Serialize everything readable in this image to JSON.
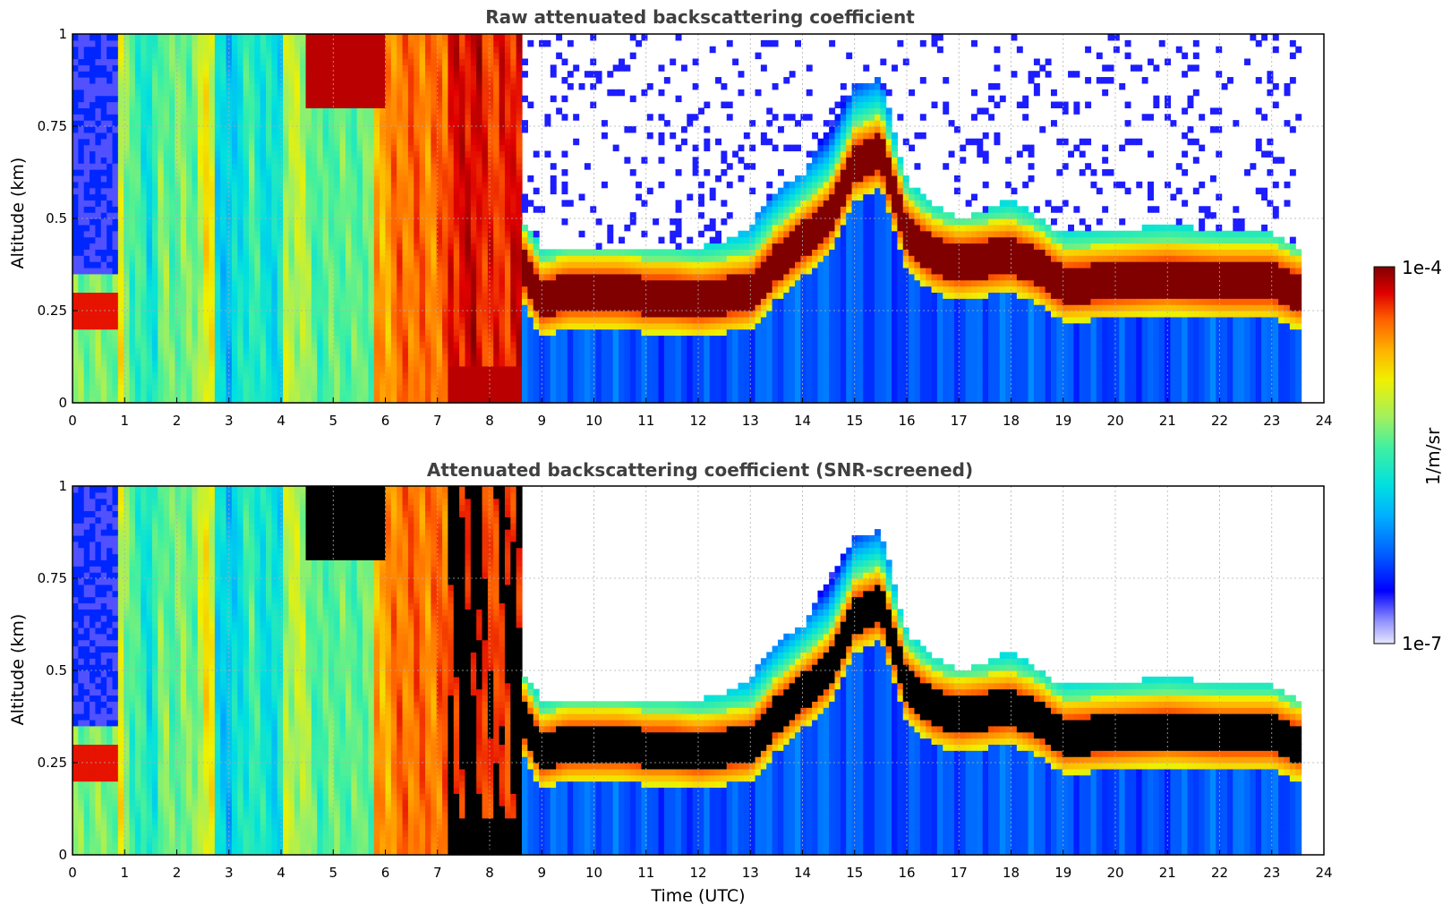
{
  "chart_data": [
    {
      "type": "heatmap",
      "title": "Raw attenuated backscattering coefficient",
      "xlabel": "",
      "ylabel": "Altitude (km)",
      "xlim": [
        0,
        24
      ],
      "ylim": [
        0,
        1
      ],
      "x_ticks": [
        "0",
        "1",
        "2",
        "3",
        "4",
        "5",
        "6",
        "7",
        "8",
        "9",
        "10",
        "11",
        "12",
        "13",
        "14",
        "15",
        "16",
        "17",
        "18",
        "19",
        "20",
        "21",
        "22",
        "23",
        "24"
      ],
      "y_ticks": [
        "0",
        "0.25",
        "0.5",
        "0.75",
        "1"
      ],
      "grid": true,
      "data_end_time": 23.55,
      "aerosol_layer": {
        "times": [
          8.6,
          9.0,
          9.5,
          10.0,
          10.5,
          11.0,
          11.5,
          12.0,
          12.5,
          13.0,
          13.5,
          14.0,
          14.5,
          15.0,
          15.5,
          16.0,
          16.5,
          17.0,
          17.5,
          18.0,
          18.5,
          19.0,
          20.0,
          21.0,
          22.0,
          23.0,
          23.55
        ],
        "layer_center_km": [
          0.38,
          0.28,
          0.3,
          0.3,
          0.3,
          0.29,
          0.29,
          0.28,
          0.29,
          0.3,
          0.38,
          0.44,
          0.5,
          0.65,
          0.68,
          0.46,
          0.4,
          0.38,
          0.39,
          0.4,
          0.37,
          0.32,
          0.33,
          0.34,
          0.33,
          0.33,
          0.3
        ],
        "layer_top_km": [
          0.5,
          0.42,
          0.42,
          0.42,
          0.42,
          0.41,
          0.41,
          0.42,
          0.44,
          0.48,
          0.58,
          0.62,
          0.75,
          0.86,
          0.88,
          0.6,
          0.54,
          0.5,
          0.52,
          0.56,
          0.5,
          0.46,
          0.47,
          0.48,
          0.47,
          0.46,
          0.42
        ]
      }
    },
    {
      "type": "heatmap",
      "title": "Attenuated backscattering coefficient (SNR-screened)",
      "xlabel": "Time (UTC)",
      "ylabel": "Altitude (km)",
      "xlim": [
        0,
        24
      ],
      "ylim": [
        0,
        1
      ],
      "x_ticks": [
        "0",
        "1",
        "2",
        "3",
        "4",
        "5",
        "6",
        "7",
        "8",
        "9",
        "10",
        "11",
        "12",
        "13",
        "14",
        "15",
        "16",
        "17",
        "18",
        "19",
        "20",
        "21",
        "22",
        "23",
        "24"
      ],
      "y_ticks": [
        "0",
        "0.25",
        "0.5",
        "0.75",
        "1"
      ],
      "grid": true,
      "data_end_time": 23.55
    }
  ],
  "colorbar": {
    "label": "1/m/sr",
    "max_label": "1e-4",
    "min_label": "1e-7",
    "scale": "log",
    "colormap": [
      "#e8e8ff",
      "#9090ff",
      "#0000ff",
      "#0060ff",
      "#00b0ff",
      "#00e0e0",
      "#40f0a0",
      "#a0f060",
      "#f0f000",
      "#ffb000",
      "#ff6000",
      "#e00000",
      "#800000"
    ],
    "range": [
      1e-07,
      0.0001
    ]
  }
}
